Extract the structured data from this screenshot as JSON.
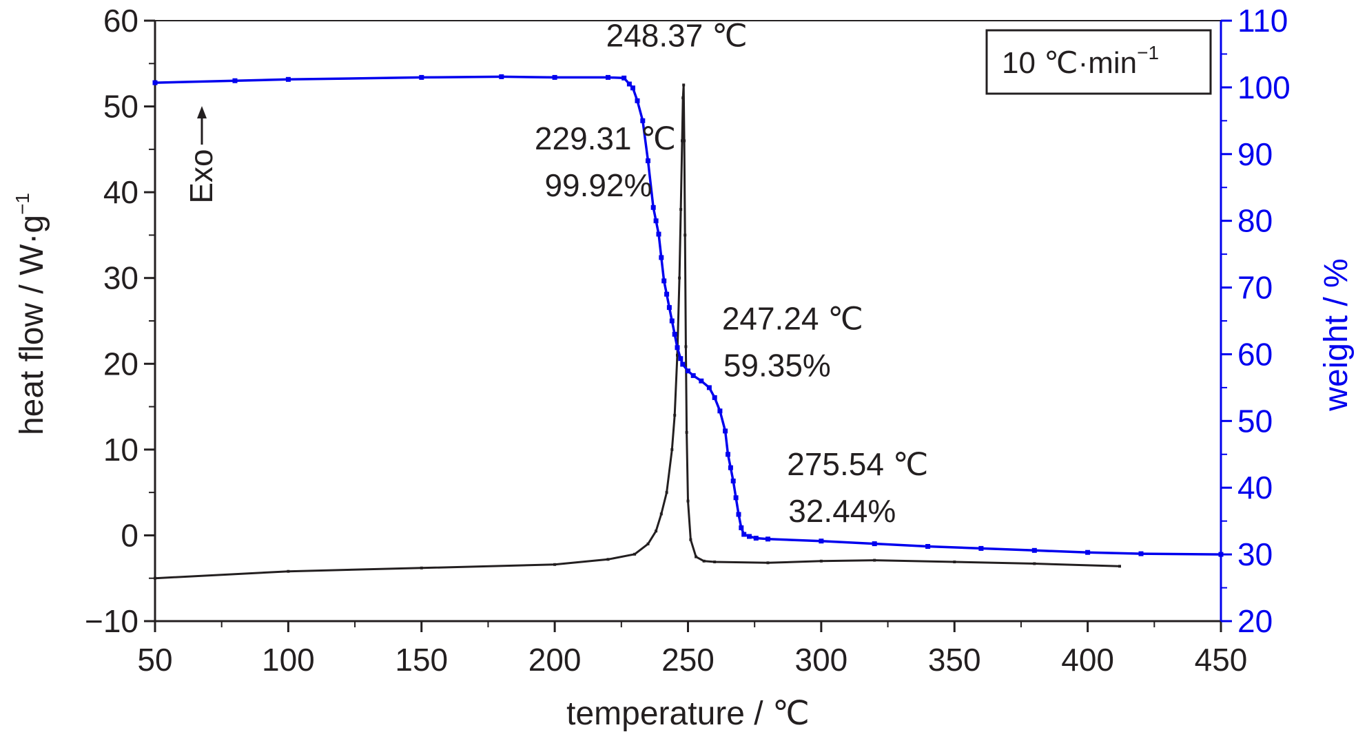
{
  "chart_data": {
    "type": "line",
    "xlabel": "temperature / ℃",
    "ylabel_left": "heat flow / W·g",
    "ylabel_left_sup": "−1",
    "ylabel_right": "weight / %",
    "xlim": [
      50,
      450
    ],
    "ylim_left": [
      -10,
      60
    ],
    "ylim_right": [
      20,
      110
    ],
    "x_ticks": [
      "50",
      "100",
      "150",
      "200",
      "250",
      "300",
      "350",
      "400",
      "450"
    ],
    "y_left_ticks": [
      "−10",
      "0",
      "10",
      "20",
      "30",
      "40",
      "50",
      "60"
    ],
    "y_right_ticks": [
      "20",
      "30",
      "40",
      "50",
      "60",
      "70",
      "80",
      "90",
      "100",
      "110"
    ],
    "x_tick_values": [
      50,
      100,
      150,
      200,
      250,
      300,
      350,
      400,
      450
    ],
    "y_left_tick_values": [
      -10,
      0,
      10,
      20,
      30,
      40,
      50,
      60
    ],
    "y_right_tick_values": [
      20,
      30,
      40,
      50,
      60,
      70,
      80,
      90,
      100,
      110
    ],
    "legend_text": "10 ℃·min",
    "legend_sup": "−1",
    "exo_label": "Exo",
    "grid": false,
    "series": [
      {
        "axis": "left",
        "color": "#231f20",
        "x": [
          50,
          100,
          150,
          200,
          220,
          230,
          235,
          238,
          240,
          242,
          244,
          245,
          246,
          246.8,
          247.3,
          247.8,
          248.1,
          248.37,
          248.6,
          248.9,
          249.2,
          249.5,
          250,
          251,
          253,
          256,
          260,
          280,
          300,
          320,
          350,
          380,
          412
        ],
        "y": [
          -5.0,
          -4.2,
          -3.8,
          -3.4,
          -2.8,
          -2.2,
          -1.0,
          0.5,
          2.5,
          5.0,
          10.0,
          14.0,
          21.0,
          30.0,
          38.0,
          46.0,
          51.0,
          52.5,
          46.0,
          35.0,
          22.0,
          12.0,
          4.0,
          -0.5,
          -2.5,
          -3.0,
          -3.1,
          -3.2,
          -3.0,
          -2.9,
          -3.1,
          -3.3,
          -3.6
        ]
      },
      {
        "axis": "right",
        "color": "#0000ee",
        "x": [
          50,
          80,
          100,
          150,
          180,
          200,
          220,
          226,
          228,
          229.31,
          231,
          233,
          235,
          237,
          238,
          239,
          240,
          241,
          242,
          243,
          244,
          245,
          246,
          247.24,
          248,
          250,
          252,
          255,
          258,
          260,
          262,
          264,
          265,
          266,
          267,
          268,
          269,
          270,
          271,
          273,
          275.54,
          280,
          300,
          320,
          340,
          360,
          380,
          400,
          420,
          450
        ],
        "y": [
          100.7,
          101.0,
          101.2,
          101.5,
          101.6,
          101.5,
          101.5,
          101.4,
          100.5,
          99.92,
          98.0,
          95.0,
          89.0,
          82.0,
          80.0,
          78.0,
          74.5,
          71.0,
          69.0,
          67.0,
          65.0,
          63.0,
          61.0,
          59.35,
          58.5,
          57.5,
          56.8,
          56.0,
          55.0,
          53.5,
          51.5,
          48.5,
          45.0,
          43.0,
          41.0,
          38.5,
          36.0,
          34.0,
          33.0,
          32.7,
          32.44,
          32.3,
          32.0,
          31.6,
          31.2,
          30.9,
          30.6,
          30.3,
          30.1,
          30.0
        ]
      }
    ],
    "annotations": [
      {
        "label": "248.37 ℃",
        "value": "",
        "anchor_x": 248.37,
        "anchor_axis": "left",
        "anchor_y": 57.0
      },
      {
        "label": "229.31 ℃",
        "value": "99.92%",
        "anchor_x": 229.31,
        "anchor_axis": "left",
        "anchor_y": 45.0
      },
      {
        "label": "247.24 ℃",
        "value": "59.35%",
        "anchor_x": 247.24,
        "anchor_axis": "left",
        "anchor_y": 24.0
      },
      {
        "label": "275.54 ℃",
        "value": "32.44%",
        "anchor_x": 275.54,
        "anchor_axis": "left",
        "anchor_y": 7.0
      }
    ]
  }
}
